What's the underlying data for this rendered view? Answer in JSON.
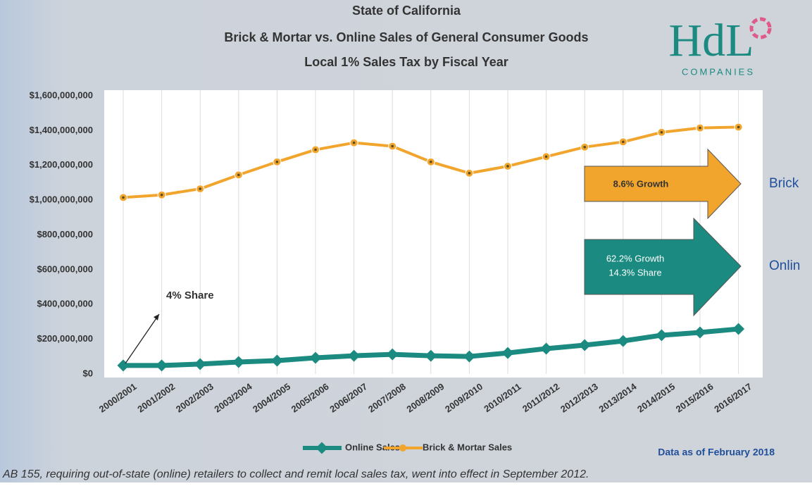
{
  "chart_data": {
    "type": "line",
    "title": "State of California",
    "subtitle": [
      "Brick & Mortar vs. Online Sales of General Consumer Goods",
      "Local 1% Sales Tax by Fiscal Year"
    ],
    "logo": {
      "name": "HdL",
      "tagline": "COMPANIES"
    },
    "categories": [
      "2000/2001",
      "2001/2002",
      "2002/2003",
      "2003/2004",
      "2004/2005",
      "2005/2006",
      "2006/2007",
      "2007/2008",
      "2008/2009",
      "2009/2010",
      "2010/2011",
      "2011/2012",
      "2012/2013",
      "2013/2014",
      "2014/2015",
      "2015/2016",
      "2016/2017"
    ],
    "series": [
      {
        "name": "Online Sales",
        "color": "#1b8a80",
        "values": [
          49000000,
          49000000,
          57000000,
          69000000,
          77000000,
          93000000,
          105000000,
          113000000,
          105000000,
          101000000,
          121000000,
          146000000,
          166000000,
          190000000,
          223000000,
          239000000,
          259000000
        ]
      },
      {
        "name": "Brick & Mortar Sales",
        "color": "#f2a52c",
        "values": [
          1015000000,
          1030000000,
          1065000000,
          1145000000,
          1220000000,
          1290000000,
          1330000000,
          1310000000,
          1220000000,
          1155000000,
          1195000000,
          1250000000,
          1305000000,
          1335000000,
          1390000000,
          1415000000,
          1420000000
        ]
      }
    ],
    "ylim": [
      0,
      1600000000
    ],
    "yticks": [
      {
        "value": 0,
        "label": "$0"
      },
      {
        "value": 200000000,
        "label": "$200,000,000"
      },
      {
        "value": 400000000,
        "label": "$400,000,000"
      },
      {
        "value": 600000000,
        "label": "$600,000,000"
      },
      {
        "value": 800000000,
        "label": "$800,000,000"
      },
      {
        "value": 1000000000,
        "label": "$1,000,000,000"
      },
      {
        "value": 1200000000,
        "label": "$1,200,000,000"
      },
      {
        "value": 1400000000,
        "label": "$1,400,000,000"
      },
      {
        "value": 1600000000,
        "label": "$1,600,000,000"
      }
    ],
    "grid": true,
    "annotations": [
      "4% Share",
      "8.6% Growth",
      "62.2% Growth",
      "14.3% Share",
      "Brick",
      "Onlin"
    ],
    "source_note": "Data as of February 2018",
    "footnote": "AB 155, requiring out-of-state (online) retailers to collect and remit local sales tax, went into effect in September 2012."
  }
}
